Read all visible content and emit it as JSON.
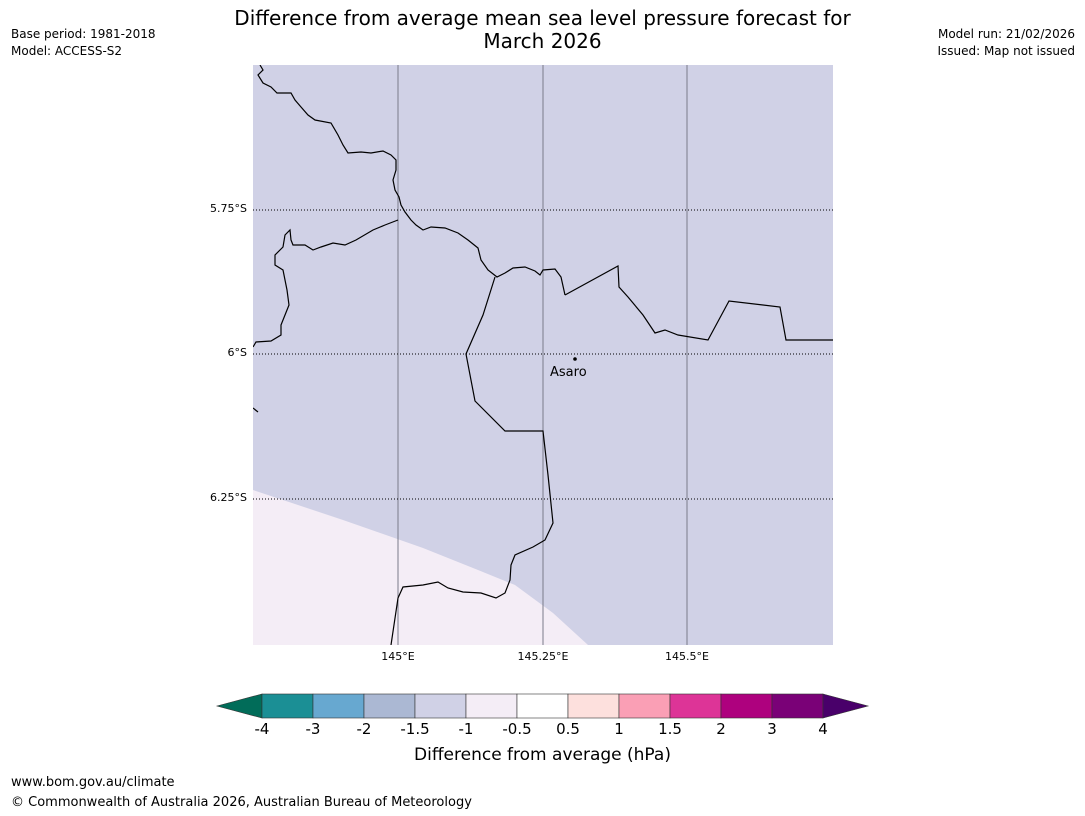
{
  "title_line1": "Difference from average mean sea level pressure forecast for",
  "title_line2": "March 2026",
  "base_period": "Base period: 1981-2018",
  "model": "Model: ACCESS-S2",
  "model_run": "Model run: 21/02/2026",
  "issued": "Issued: Map not issued",
  "map": {
    "lat_labels": [
      "5.75°S",
      "6°S",
      "6.25°S"
    ],
    "lon_labels": [
      "145°E",
      "145.25°E",
      "145.5°E"
    ],
    "place": "Asaro",
    "fill_color": "#d0d1e6",
    "light_color": "#f4edf6"
  },
  "colorbar": {
    "ticks": [
      "-4",
      "-3",
      "-2",
      "-1.5",
      "-1",
      "-0.5",
      "0.5",
      "1",
      "1.5",
      "2",
      "3",
      "4"
    ],
    "colors": [
      "#1b8f95",
      "#67a8d0",
      "#abb8d3",
      "#d0d1e6",
      "#f4edf6",
      "#ffffff",
      "#fde0dd",
      "#fa9fb5",
      "#dd3497",
      "#ae017e",
      "#7a0177"
    ],
    "under_color": "#016c59",
    "over_color": "#49006a",
    "label": "Difference from average (hPa)"
  },
  "footer_url": "www.bom.gov.au/climate",
  "footer_copyright": "© Commonwealth of Australia 2026, Australian Bureau of Meteorology"
}
